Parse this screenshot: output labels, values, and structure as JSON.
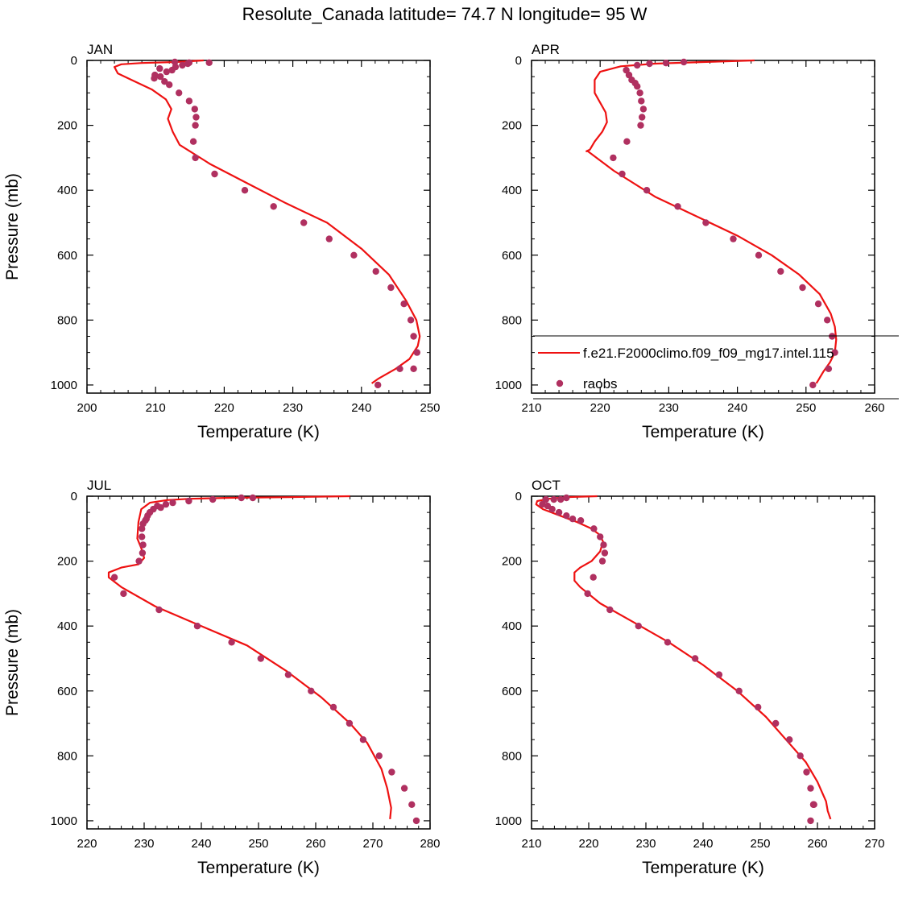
{
  "figure_title": "Resolute_Canada  latitude= 74.7 N longitude= 95 W",
  "colors": {
    "model": "#ee1111",
    "obs": "#b03060"
  },
  "legend": {
    "model_label": "f.e21.F2000climo.f09_f09_mg17.intel.115",
    "obs_label": "raobs"
  },
  "chart_data": [
    {
      "type": "line+scatter",
      "title": "JAN",
      "xlabel": "Temperature (K)",
      "ylabel": "Pressure (mb)",
      "xlim": [
        200,
        250
      ],
      "ylim": [
        0,
        1025
      ],
      "y_inverted": true,
      "xticks": [
        200,
        210,
        220,
        230,
        240,
        250
      ],
      "yticks": [
        0,
        200,
        400,
        600,
        800,
        1000
      ],
      "series": [
        {
          "name": "model",
          "kind": "line",
          "x": [
            217.0,
            213.0,
            208.0,
            205.0,
            204.0,
            204.5,
            206.5,
            209.5,
            211.5,
            212.3,
            211.8,
            212.5,
            213.5,
            218,
            223.5,
            229,
            235,
            240,
            244,
            246.5,
            248,
            248.5,
            248.2,
            247,
            245,
            242.5,
            241.5
          ],
          "y": [
            0,
            5,
            8,
            12,
            20,
            40,
            60,
            90,
            120,
            150,
            180,
            220,
            260,
            320,
            380,
            440,
            500,
            580,
            660,
            740,
            800,
            850,
            880,
            920,
            950,
            980,
            995
          ]
        },
        {
          "name": "raobs",
          "kind": "scatter",
          "x": [
            217.8,
            214.9,
            214.7,
            213.9,
            212.9,
            212.8,
            212.4,
            211.6,
            210.6,
            209.9,
            209.8,
            210.7,
            211.3,
            212.0,
            213.4,
            214.9,
            215.7,
            215.9,
            215.8,
            215.5,
            215.8,
            218.6,
            223.0,
            227.2,
            231.6,
            235.3,
            238.9,
            242.1,
            244.3,
            246.2,
            247.2,
            247.6,
            248.1,
            247.6,
            245.6,
            242.4
          ],
          "y": [
            7,
            7,
            10,
            15,
            20,
            5,
            30,
            35,
            25,
            45,
            55,
            50,
            65,
            75,
            100,
            125,
            150,
            175,
            200,
            250,
            300,
            350,
            400,
            450,
            500,
            550,
            600,
            650,
            700,
            750,
            800,
            850,
            900,
            950,
            950,
            1000
          ]
        }
      ]
    },
    {
      "type": "line+scatter",
      "title": "APR",
      "xlabel": "Temperature (K)",
      "ylabel": "",
      "xlim": [
        210,
        260
      ],
      "ylim": [
        0,
        1025
      ],
      "y_inverted": true,
      "xticks": [
        210,
        220,
        230,
        240,
        250,
        260
      ],
      "yticks": [
        0,
        200,
        400,
        600,
        800,
        1000
      ],
      "series": [
        {
          "name": "model",
          "kind": "line",
          "x": [
            242.5,
            235,
            228,
            223,
            220,
            219.2,
            219.2,
            220,
            220.8,
            221,
            220.3,
            219.2,
            218.5,
            218.0,
            218.2,
            222,
            228,
            234,
            240,
            245,
            249,
            252,
            253.6,
            254.2,
            254.4,
            254.2,
            253.5,
            252.5,
            251.8,
            251.5
          ],
          "y": [
            0,
            5,
            10,
            18,
            35,
            60,
            100,
            130,
            160,
            190,
            220,
            250,
            275,
            280,
            280,
            340,
            420,
            480,
            540,
            600,
            660,
            720,
            780,
            820,
            860,
            900,
            930,
            960,
            985,
            995
          ]
        },
        {
          "name": "raobs",
          "kind": "scatter",
          "x": [
            232.2,
            229.6,
            227.2,
            225.4,
            223.8,
            224.2,
            224.6,
            225.1,
            225.4,
            225.8,
            226.0,
            226.3,
            226.1,
            225.9,
            223.9,
            221.9,
            223.2,
            226.8,
            231.3,
            235.4,
            239.4,
            243.1,
            246.3,
            249.5,
            251.8,
            253.1,
            253.8,
            254.2,
            253.3,
            251.0
          ],
          "y": [
            5,
            8,
            10,
            15,
            30,
            45,
            60,
            70,
            80,
            100,
            125,
            150,
            175,
            200,
            250,
            300,
            350,
            400,
            450,
            500,
            550,
            600,
            650,
            700,
            750,
            800,
            850,
            900,
            950,
            1000
          ]
        }
      ]
    },
    {
      "type": "line+scatter",
      "title": "JUL",
      "xlabel": "Temperature (K)",
      "ylabel": "Pressure (mb)",
      "xlim": [
        220,
        280
      ],
      "ylim": [
        0,
        1025
      ],
      "y_inverted": true,
      "xticks": [
        220,
        230,
        240,
        250,
        260,
        270,
        280
      ],
      "yticks": [
        0,
        200,
        400,
        600,
        800,
        1000
      ],
      "series": [
        {
          "name": "model",
          "kind": "line",
          "x": [
            266,
            255,
            245,
            238,
            234,
            231,
            229.5,
            229,
            228.8,
            229.5,
            230,
            229,
            226,
            223.8,
            223.8,
            226,
            232,
            240,
            248,
            255,
            261,
            266,
            269,
            271.5,
            272.5,
            273.2,
            273.0
          ],
          "y": [
            0,
            3,
            5,
            8,
            12,
            20,
            40,
            80,
            130,
            160,
            190,
            210,
            220,
            235,
            250,
            280,
            340,
            400,
            460,
            540,
            620,
            700,
            760,
            840,
            900,
            960,
            995
          ]
        },
        {
          "name": "raobs",
          "kind": "scatter",
          "x": [
            249.0,
            247.0,
            242.0,
            237.8,
            235.0,
            233.8,
            232.9,
            232.3,
            231.6,
            231.0,
            230.6,
            230.4,
            230.2,
            229.8,
            229.6,
            229.6,
            229.8,
            229.7,
            229.1,
            224.8,
            226.4,
            232.6,
            239.3,
            245.3,
            250.4,
            255.2,
            259.2,
            263.1,
            265.9,
            268.3,
            271.1,
            273.3,
            275.5,
            276.8,
            277.6
          ],
          "y": [
            5,
            5,
            10,
            15,
            20,
            25,
            35,
            30,
            40,
            50,
            60,
            70,
            75,
            85,
            100,
            125,
            150,
            175,
            200,
            250,
            300,
            350,
            400,
            450,
            500,
            550,
            600,
            650,
            700,
            750,
            800,
            850,
            900,
            950,
            1000
          ]
        }
      ]
    },
    {
      "type": "line+scatter",
      "title": "OCT",
      "xlabel": "Temperature (K)",
      "ylabel": "",
      "xlim": [
        210,
        270
      ],
      "ylim": [
        0,
        1025
      ],
      "y_inverted": true,
      "xticks": [
        210,
        220,
        230,
        240,
        250,
        260,
        270
      ],
      "yticks": [
        0,
        200,
        400,
        600,
        800,
        1000
      ],
      "series": [
        {
          "name": "model",
          "kind": "line",
          "x": [
            221.5,
            216,
            213,
            211.0,
            210.8,
            212,
            215,
            218,
            220.5,
            222,
            222.5,
            222.0,
            220.5,
            218.5,
            217.5,
            217.5,
            218.5,
            222,
            228,
            234,
            240,
            246,
            251,
            255,
            258,
            260,
            261.5,
            261.8,
            262.3
          ],
          "y": [
            0,
            3,
            8,
            15,
            25,
            40,
            60,
            80,
            100,
            120,
            140,
            170,
            200,
            220,
            235,
            260,
            280,
            330,
            390,
            450,
            520,
            600,
            680,
            760,
            820,
            880,
            940,
            970,
            995
          ]
        },
        {
          "name": "raobs",
          "kind": "scatter",
          "x": [
            216.1,
            215.1,
            213.9,
            212.5,
            211.9,
            212.8,
            213.6,
            214.8,
            216.1,
            217.2,
            218.6,
            220.9,
            222.0,
            222.6,
            222.8,
            222.4,
            220.8,
            219.8,
            223.7,
            228.7,
            233.8,
            238.6,
            242.8,
            246.3,
            249.6,
            252.7,
            255.1,
            257.0,
            258.1,
            258.8,
            259.4,
            259.3,
            259.3,
            258.8
          ],
          "y": [
            5,
            10,
            10,
            10,
            25,
            30,
            40,
            50,
            60,
            70,
            75,
            100,
            125,
            150,
            175,
            200,
            250,
            300,
            350,
            400,
            450,
            500,
            550,
            600,
            650,
            700,
            750,
            800,
            850,
            900,
            950,
            950,
            950,
            1000
          ]
        }
      ]
    }
  ]
}
